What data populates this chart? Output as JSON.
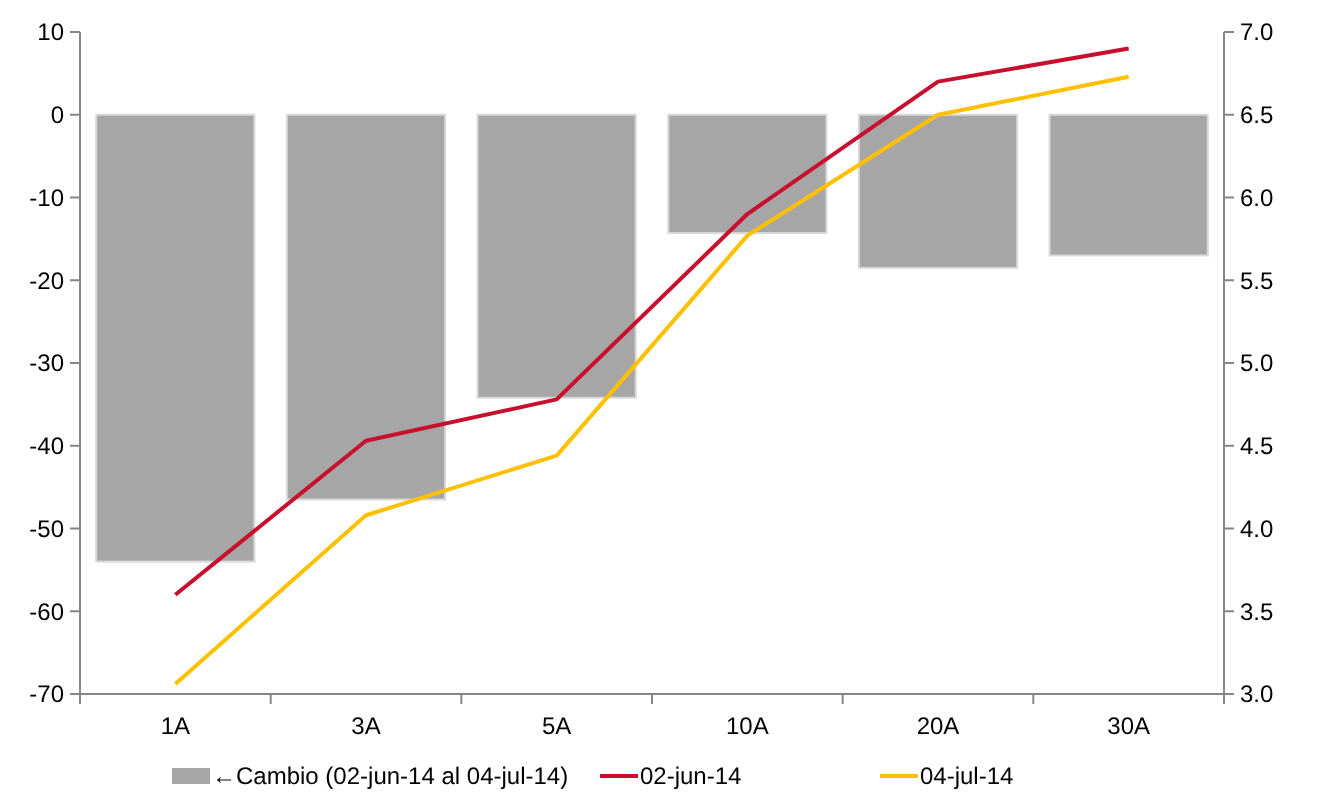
{
  "chart_data": {
    "type": "bar",
    "categories": [
      "1A",
      "3A",
      "5A",
      "10A",
      "20A",
      "30A"
    ],
    "series": [
      {
        "name": "←Cambio (02-jun-14 al 04-jul-14)",
        "color": "#a6a6a6",
        "values": [
          -54,
          -46.5,
          -34.2,
          -14.3,
          -18.5,
          -17
        ]
      },
      {
        "name": "02-jun-14",
        "type": "line",
        "axis": "y2",
        "color": "#c8102e",
        "values": [
          3.6,
          4.53,
          4.78,
          5.9,
          6.7,
          6.9
        ]
      },
      {
        "name": "04-jul-14",
        "type": "line",
        "axis": "y2",
        "color": "#ffc000",
        "values": [
          3.06,
          4.08,
          4.44,
          5.77,
          6.5,
          6.73
        ]
      }
    ],
    "ylim": [
      -70,
      10
    ],
    "yticks": [
      -70,
      -60,
      -50,
      -40,
      -30,
      -20,
      -10,
      0,
      10
    ],
    "y2lim": [
      3,
      7
    ],
    "y2ticks": [
      {
        "value": 3,
        "label": "3.0"
      },
      {
        "value": 3.5,
        "label": "3.5"
      },
      {
        "value": 4,
        "label": "4.0"
      },
      {
        "value": 4.5,
        "label": "4.5"
      },
      {
        "value": 5,
        "label": "5.0"
      },
      {
        "value": 5.5,
        "label": "5.5"
      },
      {
        "value": 6,
        "label": "6.0"
      },
      {
        "value": 6.5,
        "label": "6.5"
      },
      {
        "value": 7,
        "label": "7.0"
      }
    ],
    "legend": "bottom",
    "grid": false
  }
}
